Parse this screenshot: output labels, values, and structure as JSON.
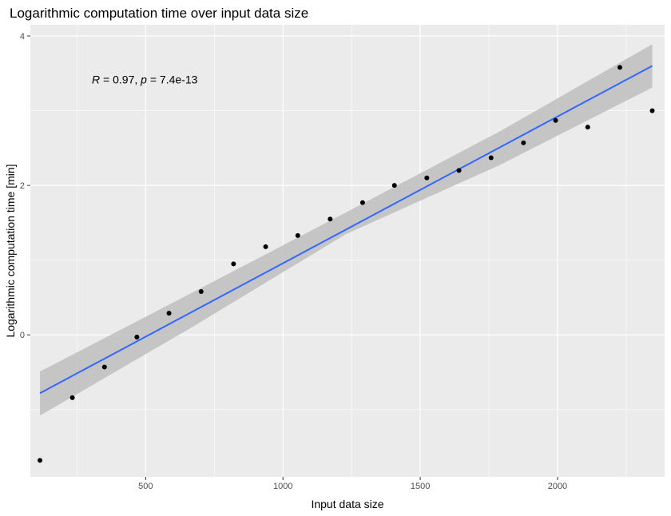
{
  "chart_data": {
    "type": "scatter",
    "title": "Logarithmic computation time over input data size",
    "xlabel": "Input data size",
    "ylabel": "Logarithmic computation time [min]",
    "xlim": [
      80,
      2390
    ],
    "ylim": [
      -1.9,
      4.15
    ],
    "x_ticks": [
      500,
      1000,
      1500,
      2000
    ],
    "x_tick_labels": [
      "500",
      "1000",
      "1500",
      "2000"
    ],
    "y_ticks": [
      0,
      2,
      4
    ],
    "y_tick_labels": [
      "0",
      "2",
      "4"
    ],
    "grid": true,
    "background": "#ebebeb",
    "colors": {
      "points": "#000000",
      "fit_line": "#3366ff",
      "confidence_band": "#bebebe",
      "grid": "#ffffff"
    },
    "points": [
      {
        "x": 115,
        "y": -1.68
      },
      {
        "x": 233,
        "y": -0.84
      },
      {
        "x": 350,
        "y": -0.43
      },
      {
        "x": 468,
        "y": -0.03
      },
      {
        "x": 585,
        "y": 0.29
      },
      {
        "x": 702,
        "y": 0.58
      },
      {
        "x": 820,
        "y": 0.95
      },
      {
        "x": 937,
        "y": 1.18
      },
      {
        "x": 1054,
        "y": 1.33
      },
      {
        "x": 1172,
        "y": 1.55
      },
      {
        "x": 1290,
        "y": 1.77
      },
      {
        "x": 1406,
        "y": 2.0
      },
      {
        "x": 1524,
        "y": 2.1
      },
      {
        "x": 1641,
        "y": 2.2
      },
      {
        "x": 1758,
        "y": 2.37
      },
      {
        "x": 1876,
        "y": 2.57
      },
      {
        "x": 1993,
        "y": 2.87
      },
      {
        "x": 2110,
        "y": 2.78
      },
      {
        "x": 2227,
        "y": 3.58
      },
      {
        "x": 2345,
        "y": 3.0
      }
    ],
    "fit": {
      "method": "linear",
      "x_start": 115,
      "y_start": -0.78,
      "x_end": 2345,
      "y_end": 3.6,
      "band": [
        {
          "x": 115,
          "lo": -1.08,
          "hi": -0.49
        },
        {
          "x": 672,
          "lo": 0.11,
          "hi": 0.57
        },
        {
          "x": 1230,
          "lo": 1.35,
          "hi": 1.64
        },
        {
          "x": 1788,
          "lo": 2.27,
          "hi": 2.72
        },
        {
          "x": 2345,
          "lo": 3.31,
          "hi": 3.89
        }
      ]
    },
    "annotation": {
      "r_label": "R",
      "r_text": " = 0.97, ",
      "p_label": "p",
      "p_text": " = 7.4e-13",
      "x": 310,
      "y": 3.42
    }
  }
}
